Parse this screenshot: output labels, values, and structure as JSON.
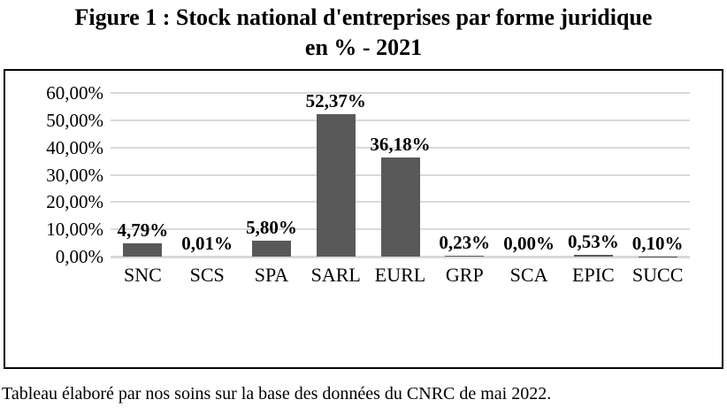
{
  "title": "Figure 1 : Stock national d'entreprises par forme juridique\nen % - 2021",
  "caption": "Tableau élaboré par nos soins sur la base des données du CNRC de mai 2022.",
  "colors": {
    "bar": "#595959",
    "gridline": "#d9d9d9",
    "frame_border": "#000000",
    "text": "#000000",
    "background": "#ffffff"
  },
  "chart_data": {
    "type": "bar",
    "title": "Figure 1 : Stock national d'entreprises par forme juridique en % - 2021",
    "categories": [
      "SNC",
      "SCS",
      "SPA",
      "SARL",
      "EURL",
      "GRP",
      "SCA",
      "EPIC",
      "SUCC"
    ],
    "values": [
      4.79,
      0.01,
      5.8,
      52.37,
      36.18,
      0.23,
      0.0,
      0.53,
      0.1
    ],
    "value_labels": [
      "4,79%",
      "0,01%",
      "5,80%",
      "52,37%",
      "36,18%",
      "0,23%",
      "0,00%",
      "0,53%",
      "0,10%"
    ],
    "ytick_values": [
      0,
      10,
      20,
      30,
      40,
      50,
      60
    ],
    "ytick_labels": [
      "0,00%",
      "10,00%",
      "20,00%",
      "30,00%",
      "40,00%",
      "50,00%",
      "60,00%"
    ],
    "ylim": [
      0,
      60
    ],
    "xlabel": "",
    "ylabel": "",
    "grid": true,
    "legend": false,
    "data_labels": "outside-end",
    "caption": "Tableau élaboré par nos soins sur la base des données du CNRC de mai 2022."
  }
}
